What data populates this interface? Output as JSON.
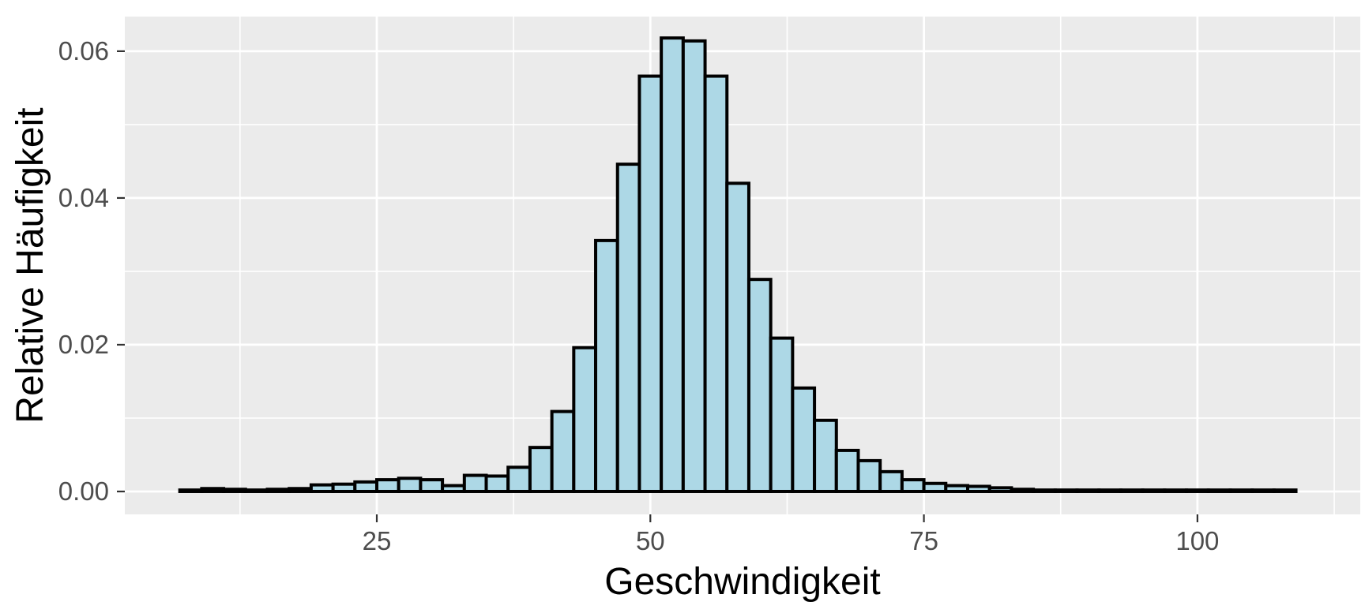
{
  "chart_data": {
    "type": "bar",
    "subtype": "histogram",
    "title": "",
    "xlabel": "Geschwindigkeit",
    "ylabel": "Relative Häufigkeit",
    "bin_edges": [
      7,
      9,
      11,
      13,
      15,
      17,
      19,
      21,
      23,
      25,
      27,
      29,
      31,
      33,
      35,
      37,
      39,
      41,
      43,
      45,
      47,
      49,
      51,
      53,
      55,
      57,
      59,
      61,
      63,
      65,
      67,
      69,
      71,
      73,
      75,
      77,
      79,
      81,
      83,
      85,
      87,
      89,
      91,
      93,
      95,
      97,
      99,
      101,
      103,
      105,
      107,
      109
    ],
    "values": [
      0.0002,
      0.0004,
      0.0003,
      0.0002,
      0.0003,
      0.0004,
      0.0009,
      0.001,
      0.0013,
      0.0016,
      0.0018,
      0.0016,
      0.0008,
      0.0022,
      0.0021,
      0.0033,
      0.006,
      0.0109,
      0.0196,
      0.0342,
      0.0446,
      0.0566,
      0.0618,
      0.0614,
      0.0566,
      0.042,
      0.0289,
      0.0209,
      0.0141,
      0.0097,
      0.0056,
      0.0042,
      0.0027,
      0.0016,
      0.0011,
      0.0008,
      0.0007,
      0.0005,
      0.0003,
      0.0002,
      0.0002,
      0.0002,
      0.0002,
      0.0002,
      0.0002,
      0.0002,
      0.0002,
      0.0002,
      0.0002,
      0.0002,
      0.0002
    ],
    "x_ticks": [
      25,
      50,
      75,
      100
    ],
    "x_tick_labels": [
      "25",
      "50",
      "75",
      "100"
    ],
    "x_minor_ticks": [
      12.5,
      37.5,
      62.5,
      87.5,
      112.5
    ],
    "y_ticks": [
      0,
      0.02,
      0.04,
      0.06
    ],
    "y_tick_labels": [
      "0.00",
      "0.02",
      "0.04",
      "0.06"
    ],
    "y_minor_ticks": [
      0.01,
      0.03,
      0.05
    ],
    "xlim": [
      1.97,
      114.88
    ],
    "ylim": [
      -0.00312,
      0.06472
    ],
    "grid": "on",
    "legend": "none",
    "colors": {
      "bar_fill": "#ADD8E6",
      "bar_stroke": "#000000",
      "panel_background": "#EBEBEB",
      "grid_major": "#FFFFFF",
      "grid_minor": "#FFFFFF",
      "tick_mark": "#333333",
      "tick_label": "#4D4D4D",
      "axis_title": "#000000",
      "figure_background": "#FFFFFF"
    }
  }
}
